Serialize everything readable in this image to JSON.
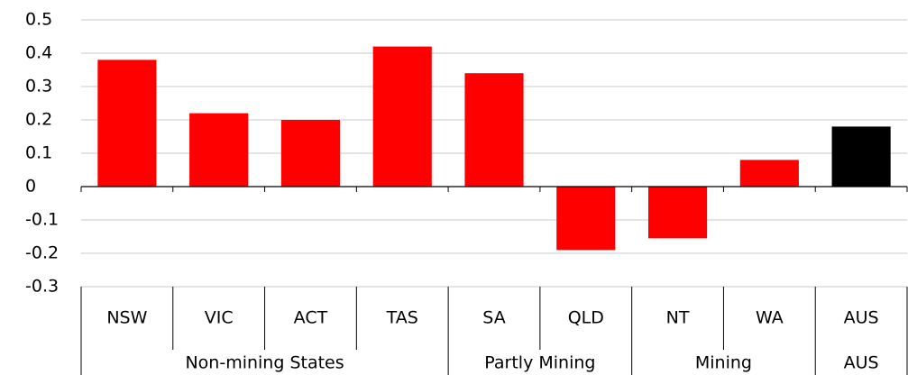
{
  "chart_data": {
    "type": "bar",
    "categories": [
      "NSW",
      "VIC",
      "ACT",
      "TAS",
      "SA",
      "QLD",
      "NT",
      "WA",
      "AUS"
    ],
    "groups": [
      "Non-mining States",
      "Non-mining States",
      "Non-mining States",
      "Non-mining States",
      "Partly Mining",
      "Partly Mining",
      "Mining",
      "Mining",
      "AUS"
    ],
    "values": [
      0.38,
      0.22,
      0.2,
      0.42,
      0.34,
      -0.19,
      -0.155,
      0.08,
      0.18
    ],
    "colors": [
      "#ff0000",
      "#ff0000",
      "#ff0000",
      "#ff0000",
      "#ff0000",
      "#ff0000",
      "#ff0000",
      "#ff0000",
      "#000000"
    ],
    "ylim": [
      -0.3,
      0.5
    ],
    "yticks": [
      -0.3,
      -0.2,
      -0.1,
      0,
      0.1,
      0.2,
      0.3,
      0.4,
      0.5
    ],
    "grid": true
  }
}
